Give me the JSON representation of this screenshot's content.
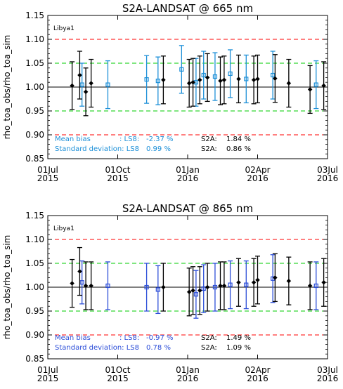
{
  "chart_data": [
    {
      "type": "scatter",
      "title": "S2A-LANDSAT @ 665 nm",
      "xlabel": "",
      "ylabel": "rho_toa_obs/rho_toa_sim",
      "site_label": "Libya1",
      "xlim": [
        "2015-07-01",
        "2016-07-03"
      ],
      "ylim": [
        0.85,
        1.15
      ],
      "y_ticks": [
        "0.85",
        "0.90",
        "0.95",
        "1.00",
        "1.05",
        "1.10",
        "1.15"
      ],
      "x_ticks": [
        {
          "date": "2015-07-01",
          "line1": "01Jul",
          "line2": "2015"
        },
        {
          "date": "2015-10-01",
          "line1": "01Oct",
          "line2": "2015"
        },
        {
          "date": "2016-01-01",
          "line1": "01Jan",
          "line2": "2016"
        },
        {
          "date": "2016-04-02",
          "line1": "02Apr",
          "line2": "2016"
        },
        {
          "date": "2016-07-03",
          "line1": "03Jul",
          "line2": "2016"
        }
      ],
      "reference_lines": [
        {
          "y": 1.1,
          "color": "#ff0000",
          "style": "dashed"
        },
        {
          "y": 1.05,
          "color": "#00cc00",
          "style": "dashed"
        },
        {
          "y": 1.0,
          "color": "#000000",
          "style": "solid"
        },
        {
          "y": 0.95,
          "color": "#00cc00",
          "style": "dashed"
        },
        {
          "y": 0.9,
          "color": "#ff0000",
          "style": "dashed"
        }
      ],
      "series": [
        {
          "color": "#1e90d8",
          "marker": "square",
          "points": [
            {
              "x": "2015-08-15",
              "y": 1.005,
              "err": 0.045
            },
            {
              "x": "2015-09-18",
              "y": 1.005,
              "err": 0.05
            },
            {
              "x": "2015-11-08",
              "y": 1.016,
              "err": 0.05
            },
            {
              "x": "2015-11-23",
              "y": 1.013,
              "err": 0.05
            },
            {
              "x": "2015-12-24",
              "y": 1.037,
              "err": 0.05
            },
            {
              "x": "2016-01-12",
              "y": 1.01,
              "err": 0.05
            },
            {
              "x": "2016-01-22",
              "y": 1.025,
              "err": 0.05
            },
            {
              "x": "2016-02-06",
              "y": 1.022,
              "err": 0.05
            },
            {
              "x": "2016-02-26",
              "y": 1.028,
              "err": 0.05
            },
            {
              "x": "2016-03-18",
              "y": 1.017,
              "err": 0.05
            },
            {
              "x": "2016-04-22",
              "y": 1.025,
              "err": 0.05
            },
            {
              "x": "2016-06-18",
              "y": 1.005,
              "err": 0.05
            }
          ]
        },
        {
          "color": "#000000",
          "marker": "diamond",
          "points": [
            {
              "x": "2015-08-02",
              "y": 1.003,
              "err": 0.05
            },
            {
              "x": "2015-08-12",
              "y": 1.025,
              "err": 0.05
            },
            {
              "x": "2015-08-20",
              "y": 0.99,
              "err": 0.05
            },
            {
              "x": "2015-08-27",
              "y": 1.008,
              "err": 0.05
            },
            {
              "x": "2015-11-30",
              "y": 1.015,
              "err": 0.05
            },
            {
              "x": "2016-01-03",
              "y": 1.008,
              "err": 0.05
            },
            {
              "x": "2016-01-08",
              "y": 1.01,
              "err": 0.05
            },
            {
              "x": "2016-01-17",
              "y": 1.015,
              "err": 0.05
            },
            {
              "x": "2016-01-27",
              "y": 1.02,
              "err": 0.05
            },
            {
              "x": "2016-02-13",
              "y": 1.013,
              "err": 0.05
            },
            {
              "x": "2016-02-18",
              "y": 1.015,
              "err": 0.05
            },
            {
              "x": "2016-03-08",
              "y": 1.017,
              "err": 0.05
            },
            {
              "x": "2016-03-28",
              "y": 1.015,
              "err": 0.05
            },
            {
              "x": "2016-04-02",
              "y": 1.017,
              "err": 0.05
            },
            {
              "x": "2016-04-25",
              "y": 1.018,
              "err": 0.05
            },
            {
              "x": "2016-05-13",
              "y": 1.008,
              "err": 0.05
            },
            {
              "x": "2016-06-10",
              "y": 0.995,
              "err": 0.05
            },
            {
              "x": "2016-06-28",
              "y": 1.003,
              "err": 0.05
            }
          ]
        }
      ],
      "stats": {
        "row1": {
          "label": "Mean bias",
          "ls8_label": ": LS8:",
          "ls8_value": "-2.37 %",
          "s2a_label": "S2A:",
          "s2a_value": "1.84 %"
        },
        "row2": {
          "label": "Standard deviation: LS8",
          "ls8_label": "",
          "ls8_value": "0.99 %",
          "s2a_label": "S2A:",
          "s2a_value": "0.86 %"
        }
      }
    },
    {
      "type": "scatter",
      "title": "S2A-LANDSAT @ 865 nm",
      "xlabel": "",
      "ylabel": "rho_toa_obs/rho_toa_sim",
      "site_label": "Libya1",
      "xlim": [
        "2015-07-01",
        "2016-07-03"
      ],
      "ylim": [
        0.85,
        1.15
      ],
      "y_ticks": [
        "0.85",
        "0.90",
        "0.95",
        "1.00",
        "1.05",
        "1.10",
        "1.15"
      ],
      "x_ticks": [
        {
          "date": "2015-07-01",
          "line1": "01Jul",
          "line2": "2015"
        },
        {
          "date": "2015-10-01",
          "line1": "01Oct",
          "line2": "2015"
        },
        {
          "date": "2016-01-01",
          "line1": "01Jan",
          "line2": "2016"
        },
        {
          "date": "2016-04-02",
          "line1": "02Apr",
          "line2": "2016"
        },
        {
          "date": "2016-07-03",
          "line1": "03Jul",
          "line2": "2016"
        }
      ],
      "reference_lines": [
        {
          "y": 1.1,
          "color": "#ff0000",
          "style": "dashed"
        },
        {
          "y": 1.05,
          "color": "#00cc00",
          "style": "dashed"
        },
        {
          "y": 1.0,
          "color": "#000000",
          "style": "solid"
        },
        {
          "y": 0.95,
          "color": "#00cc00",
          "style": "dashed"
        },
        {
          "y": 0.9,
          "color": "#ff0000",
          "style": "dashed"
        }
      ],
      "series": [
        {
          "color": "#2c4ed8",
          "marker": "square",
          "points": [
            {
              "x": "2015-08-15",
              "y": 1.01,
              "err": 0.045
            },
            {
              "x": "2015-09-18",
              "y": 1.003,
              "err": 0.05
            },
            {
              "x": "2015-11-08",
              "y": 1.0,
              "err": 0.05
            },
            {
              "x": "2015-11-23",
              "y": 0.995,
              "err": 0.05
            },
            {
              "x": "2016-01-12",
              "y": 0.985,
              "err": 0.05
            },
            {
              "x": "2016-01-22",
              "y": 0.997,
              "err": 0.05
            },
            {
              "x": "2016-02-06",
              "y": 1.0,
              "err": 0.05
            },
            {
              "x": "2016-02-26",
              "y": 1.005,
              "err": 0.05
            },
            {
              "x": "2016-03-18",
              "y": 1.005,
              "err": 0.05
            },
            {
              "x": "2016-04-22",
              "y": 1.018,
              "err": 0.05
            },
            {
              "x": "2016-06-18",
              "y": 1.003,
              "err": 0.05
            }
          ]
        },
        {
          "color": "#000000",
          "marker": "diamond",
          "points": [
            {
              "x": "2015-08-02",
              "y": 1.008,
              "err": 0.05
            },
            {
              "x": "2015-08-12",
              "y": 1.033,
              "err": 0.05
            },
            {
              "x": "2015-08-20",
              "y": 1.003,
              "err": 0.05
            },
            {
              "x": "2015-08-27",
              "y": 1.003,
              "err": 0.05
            },
            {
              "x": "2015-11-30",
              "y": 1.0,
              "err": 0.05
            },
            {
              "x": "2016-01-03",
              "y": 0.99,
              "err": 0.05
            },
            {
              "x": "2016-01-08",
              "y": 0.993,
              "err": 0.05
            },
            {
              "x": "2016-01-17",
              "y": 0.993,
              "err": 0.05
            },
            {
              "x": "2016-01-27",
              "y": 1.0,
              "err": 0.05
            },
            {
              "x": "2016-02-13",
              "y": 1.003,
              "err": 0.05
            },
            {
              "x": "2016-02-18",
              "y": 1.003,
              "err": 0.05
            },
            {
              "x": "2016-03-08",
              "y": 1.01,
              "err": 0.05
            },
            {
              "x": "2016-03-28",
              "y": 1.01,
              "err": 0.05
            },
            {
              "x": "2016-04-02",
              "y": 1.015,
              "err": 0.05
            },
            {
              "x": "2016-04-25",
              "y": 1.02,
              "err": 0.05
            },
            {
              "x": "2016-05-13",
              "y": 1.013,
              "err": 0.05
            },
            {
              "x": "2016-06-10",
              "y": 1.003,
              "err": 0.05
            },
            {
              "x": "2016-06-28",
              "y": 1.01,
              "err": 0.05
            }
          ]
        }
      ],
      "stats": {
        "row1": {
          "label": "Mean bias",
          "ls8_label": ": LS8:",
          "ls8_value": "-0.97 %",
          "s2a_label": "S2A:",
          "s2a_value": "1.49 %"
        },
        "row2": {
          "label": "Standard deviation: LS8",
          "ls8_label": "",
          "ls8_value": "0.78 %",
          "s2a_label": "S2A:",
          "s2a_value": "1.09 %"
        }
      }
    }
  ]
}
